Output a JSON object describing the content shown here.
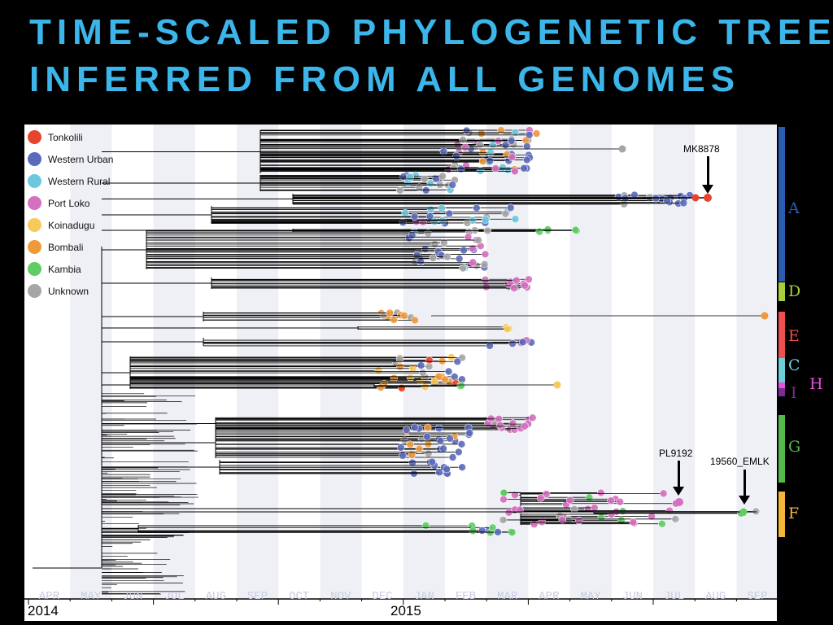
{
  "title": {
    "line1": "TIME-SCALED PHYLOGENETIC TREE",
    "line2": "INFERRED FROM ALL GENOMES"
  },
  "legend": [
    {
      "label": "Tonkolili",
      "color": "#e8432c"
    },
    {
      "label": "Western Urban",
      "color": "#5b6bbb"
    },
    {
      "label": "Western Rural",
      "color": "#6cc8de"
    },
    {
      "label": "Port Loko",
      "color": "#d56fc0"
    },
    {
      "label": "Koinadugu",
      "color": "#f6c95a"
    },
    {
      "label": "Bombali",
      "color": "#ef9a3a"
    },
    {
      "label": "Kambia",
      "color": "#5fcd63"
    },
    {
      "label": "Unknown",
      "color": "#a6a6a6"
    }
  ],
  "axis": {
    "months": [
      "APR",
      "MAY",
      "JUN",
      "JUL",
      "AUG",
      "SEP",
      "OCT",
      "NOV",
      "DEC",
      "JAN",
      "FEB",
      "MAR",
      "APR",
      "MAY",
      "JUN",
      "JUL",
      "AUG",
      "SEP"
    ],
    "years": [
      "2014",
      "2015"
    ]
  },
  "clades": [
    {
      "label": "A",
      "color": "#2a5db0"
    },
    {
      "label": "D",
      "color": "#a6cf3d"
    },
    {
      "label": "E",
      "color": "#ee5050"
    },
    {
      "label": "C",
      "color": "#6ccfd8"
    },
    {
      "label": "H",
      "color": "#e94fe0"
    },
    {
      "label": "I",
      "color": "#7b2a96"
    },
    {
      "label": "G",
      "color": "#55b84a"
    },
    {
      "label": "F",
      "color": "#f3b73a"
    }
  ],
  "annotations": [
    {
      "label": "MK8878"
    },
    {
      "label": "PL9192"
    },
    {
      "label": "19560_EMLK"
    }
  ]
}
